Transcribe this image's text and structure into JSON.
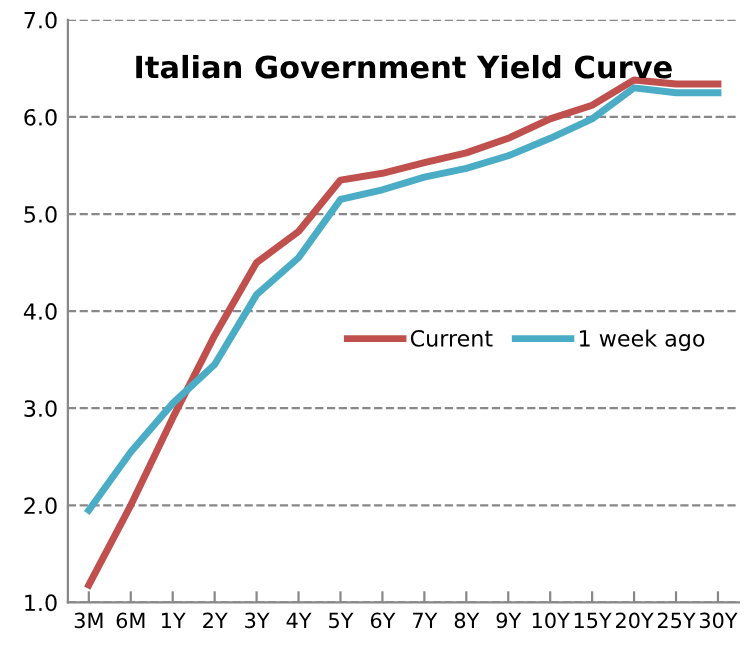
{
  "chart_data": {
    "type": "line",
    "title": "Italian Government Yield Curve",
    "categories": [
      "3M",
      "6M",
      "1Y",
      "2Y",
      "3Y",
      "4Y",
      "5Y",
      "6Y",
      "7Y",
      "8Y",
      "9Y",
      "10Y",
      "15Y",
      "20Y",
      "25Y",
      "30Y"
    ],
    "series": [
      {
        "name": "Current",
        "color": "#c0504d",
        "values": [
          1.18,
          2.0,
          2.9,
          3.75,
          4.5,
          4.82,
          5.35,
          5.42,
          5.53,
          5.63,
          5.78,
          5.98,
          6.12,
          6.38,
          6.34,
          6.34
        ]
      },
      {
        "name": "1 week ago",
        "color": "#4bacc6",
        "values": [
          1.95,
          2.55,
          3.05,
          3.45,
          4.17,
          4.55,
          5.15,
          5.25,
          5.38,
          5.47,
          5.6,
          5.78,
          5.98,
          6.3,
          6.25,
          6.25
        ]
      }
    ],
    "ylim": [
      1,
      7
    ],
    "yticks": [
      {
        "value": 1,
        "label": "1.0"
      },
      {
        "value": 2,
        "label": "2.0"
      },
      {
        "value": 3,
        "label": "3.0"
      },
      {
        "value": 4,
        "label": "4.0"
      },
      {
        "value": 5,
        "label": "5.0"
      },
      {
        "value": 6,
        "label": "6.0"
      },
      {
        "value": 7,
        "label": "7.0"
      }
    ],
    "grid": "y",
    "legend": "center right",
    "marker": "none",
    "line_style": "solid"
  }
}
